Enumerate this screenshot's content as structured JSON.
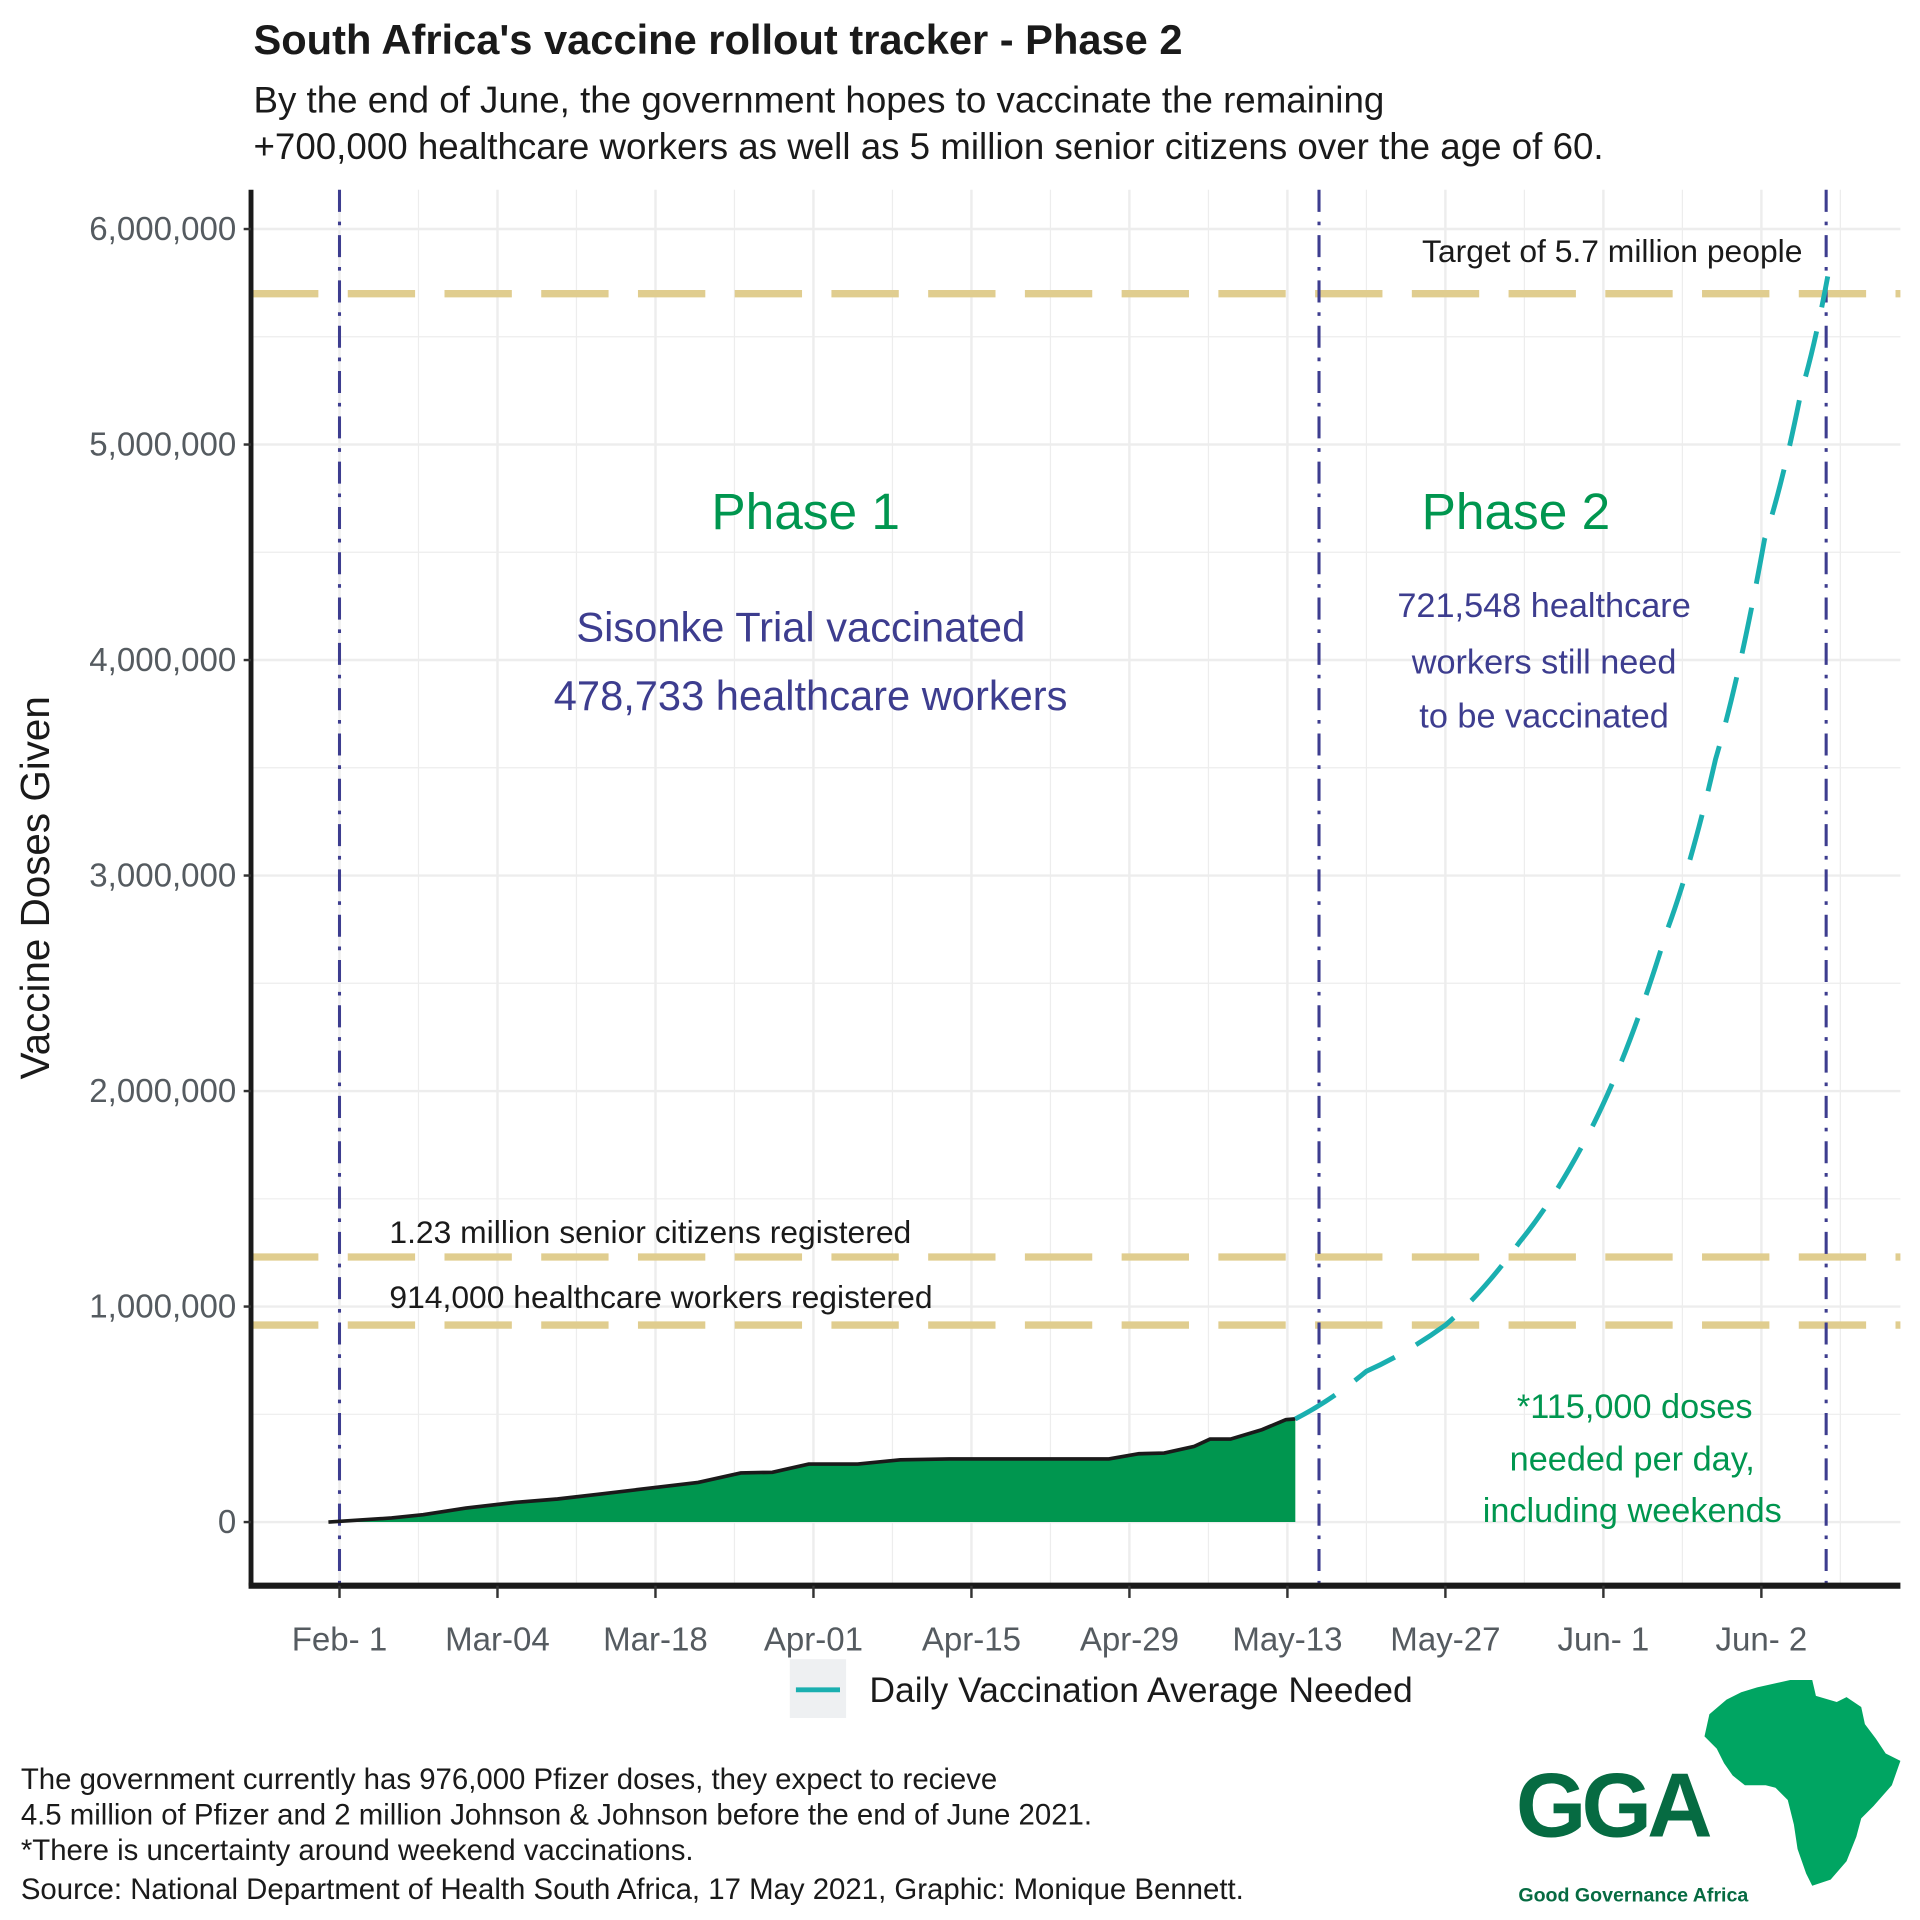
{
  "title": "South Africa's vaccine rollout tracker - Phase 2",
  "subtitle": [
    "By the end of June, the government hopes to vaccinate the remaining",
    "+700,000 healthcare workers as well as 5 million senior citizens over the age of 60."
  ],
  "chart_data": {
    "type": "area",
    "ylabel": "Vaccine Doses Given",
    "xlabel": "",
    "x_tick_labels": [
      "Feb- 1",
      "Mar-04",
      "Mar-18",
      "Apr-01",
      "Apr-15",
      "Apr-29",
      "May-13",
      "May-27",
      "Jun- 1",
      "Jun- 2"
    ],
    "y_ticks": [
      0,
      1000000,
      2000000,
      3000000,
      4000000,
      5000000,
      6000000
    ],
    "y_tick_labels": [
      "0",
      "1,000,000",
      "2,000,000",
      "3,000,000",
      "4,000,000",
      "5,000,000",
      "6,000,000"
    ],
    "ylim": [
      -284000,
      6182000
    ],
    "xlim_tick_index": [
      -0.56,
      9.88
    ],
    "grid": true,
    "colors": {
      "area": "#00964f",
      "line": "#1a1a1a",
      "projection": "#1aafb0",
      "reference": "#e0cd8f",
      "phase_divider": "#3d3d8f"
    },
    "series": [
      {
        "type": "area",
        "points_tick_index": [
          [
            -0.07,
            0
          ],
          [
            0.33,
            19000
          ],
          [
            0.53,
            34000
          ],
          [
            0.8,
            65000
          ],
          [
            1.11,
            91000
          ],
          [
            1.38,
            107000
          ],
          [
            1.65,
            130000
          ],
          [
            1.88,
            150000
          ],
          [
            2.27,
            184000
          ],
          [
            2.54,
            228000
          ],
          [
            2.74,
            231000
          ],
          [
            2.97,
            269000
          ],
          [
            3.28,
            269000
          ],
          [
            3.55,
            289000
          ],
          [
            3.86,
            293000
          ],
          [
            4.87,
            293000
          ],
          [
            5.06,
            317000
          ],
          [
            5.22,
            320000
          ],
          [
            5.41,
            351000
          ],
          [
            5.51,
            385000
          ],
          [
            5.64,
            385000
          ],
          [
            5.84,
            429000
          ],
          [
            5.99,
            475000
          ],
          [
            6.05,
            478733
          ]
        ]
      },
      {
        "name": "Daily Vaccination Average Needed",
        "type": "line-dashed",
        "points_tick_index": [
          [
            6.05,
            478733
          ],
          [
            6.5,
            700000
          ],
          [
            7.0,
            914000
          ],
          [
            7.47,
            1300000
          ],
          [
            7.94,
            1850000
          ],
          [
            8.4,
            2740000
          ],
          [
            8.71,
            3540000
          ],
          [
            9.02,
            4560000
          ],
          [
            9.25,
            5240000
          ],
          [
            9.42,
            5780000
          ]
        ]
      }
    ],
    "reference_lines": [
      {
        "value": 5700000,
        "label": "Target of 5.7 million people"
      },
      {
        "value": 1230000,
        "label": "1.23 million senior citizens registered"
      },
      {
        "value": 914000,
        "label": "914,000 healthcare workers registered"
      }
    ],
    "phase_dividers_tick_index": [
      0,
      6.2,
      9.41
    ],
    "legend": {
      "label": "Daily Vaccination Average Needed",
      "position": "bottom"
    }
  },
  "annotations": {
    "phase1": "Phase 1",
    "phase2": "Phase 2",
    "phase1_text": [
      "Sisonke Trial vaccinated",
      "478,733 healthcare workers"
    ],
    "phase2_text": [
      "721,548 healthcare",
      "workers still need",
      "to be vaccinated"
    ],
    "doses_text": [
      "*115,000 doses",
      "needed per day,",
      "including weekends"
    ]
  },
  "footer": [
    "The government currently has 976,000 Pfizer doses, they expect to recieve",
    "4.5 million of Pfizer and 2 million Johnson & Johnson before the end of June 2021.",
    "*There is uncertainty around weekend vaccinations.",
    "Source: National Department of Health South Africa, 17 May 2021, Graphic: Monique Bennett."
  ],
  "logo": {
    "text": "GGA",
    "name": "Good Governance Africa",
    "color": "#00a562",
    "dark": "#066b42"
  }
}
